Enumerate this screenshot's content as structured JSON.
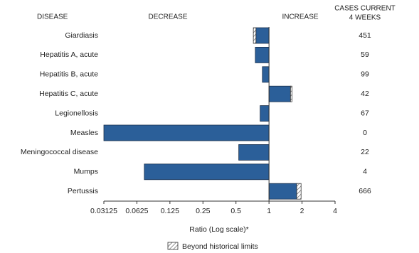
{
  "chart_data": {
    "type": "bar",
    "orientation": "horizontal",
    "log_scale": true,
    "log_base": 2,
    "category_header": "DISEASE",
    "decrease_label": "DECREASE",
    "increase_label": "INCREASE",
    "cases_header": [
      "CASES CURRENT",
      "4 WEEKS"
    ],
    "categories": [
      "Giardiasis",
      "Hepatitis A, acute",
      "Hepatitis B, acute",
      "Hepatitis C, acute",
      "Legionellosis",
      "Measles",
      "Meningococcal disease",
      "Mumps",
      "Pertussis"
    ],
    "values": [
      0.72,
      0.75,
      0.87,
      1.62,
      0.83,
      0.03125,
      0.53,
      0.073,
      1.96
    ],
    "limit_values": [
      0.76,
      null,
      null,
      1.57,
      null,
      null,
      null,
      null,
      1.79
    ],
    "cases": [
      451,
      59,
      99,
      42,
      67,
      0,
      22,
      4,
      666
    ],
    "color": "#2b5f99",
    "xlim": [
      0.03125,
      4
    ],
    "xticks": [
      0.03125,
      0.0625,
      0.125,
      0.25,
      0.5,
      1,
      2,
      4
    ],
    "baseline": 1,
    "xlabel": "Ratio (Log scale)*",
    "legend_label": "Beyond historical limits"
  }
}
